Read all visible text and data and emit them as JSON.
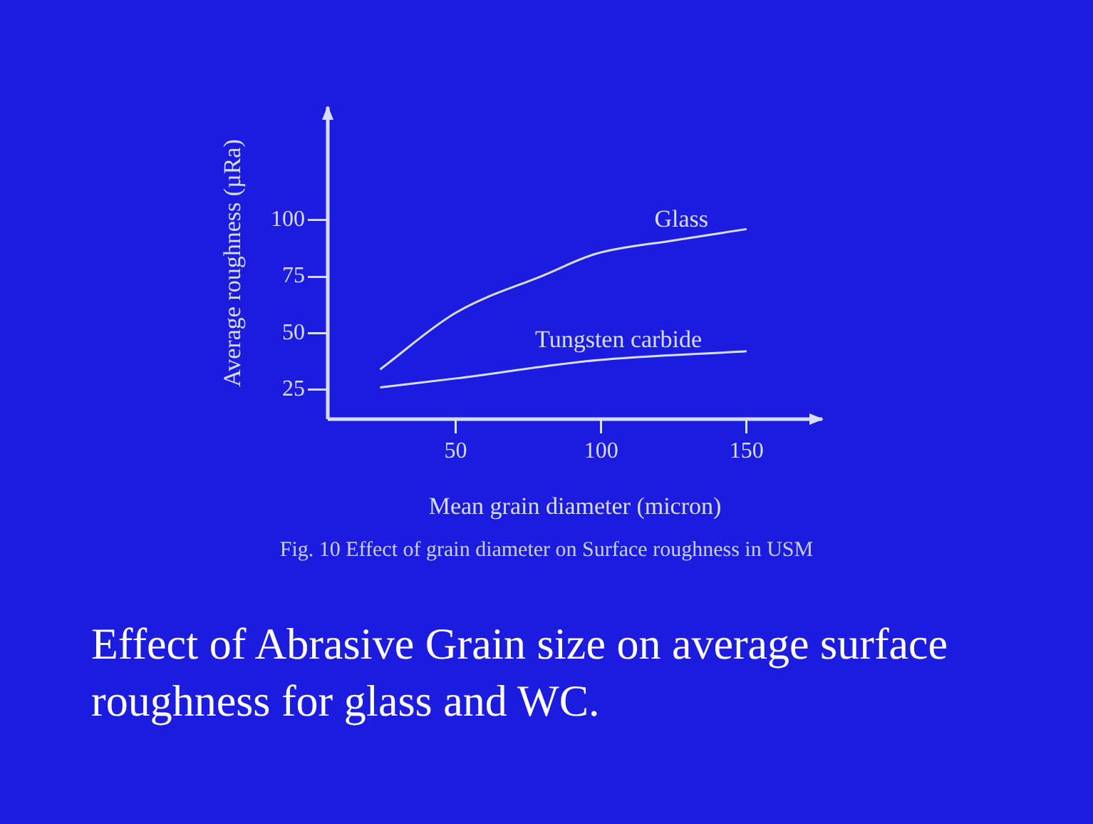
{
  "chart_data": {
    "type": "line",
    "xlabel": "Mean grain diameter (micron)",
    "ylabel": "Average roughness (µRa)",
    "xlim": [
      6,
      176
    ],
    "xticks": [
      50,
      100,
      150
    ],
    "ylim": [
      12,
      150
    ],
    "yticks": [
      25,
      50,
      75,
      100
    ],
    "series": [
      {
        "name": "Glass",
        "color": "#d8def8",
        "x": [
          24,
          50,
          81,
          98,
          125,
          150
        ],
        "values": [
          34,
          59,
          76,
          85,
          91,
          96
        ]
      },
      {
        "name": "Tungsten carbide",
        "color": "#d8def8",
        "x": [
          24,
          50,
          98,
          150
        ],
        "values": [
          26,
          30,
          38,
          42
        ]
      }
    ],
    "grid": false,
    "legend": false,
    "marker": "none",
    "line_style": "solid",
    "annotations": [
      "Fig. 10 Effect of grain diameter on Surface roughness in USM",
      "Effect of Abrasive Grain size on average surface roughness for glass and WC."
    ]
  }
}
